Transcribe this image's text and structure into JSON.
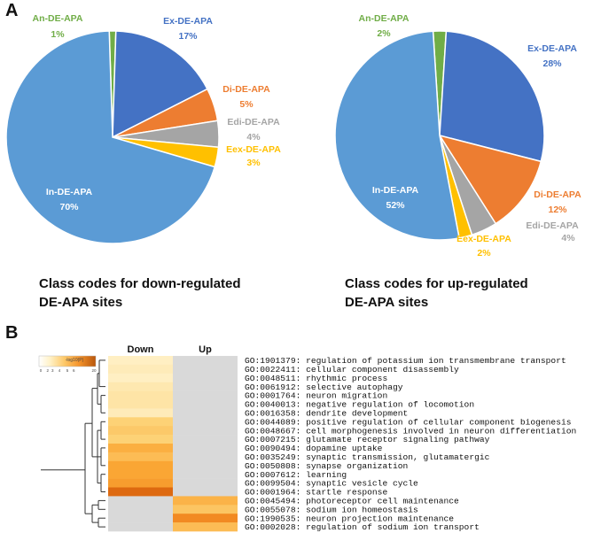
{
  "panels": {
    "a_letter": "A",
    "b_letter": "B"
  },
  "colors": {
    "Ex-DE-APA": "#4472c4",
    "Di-DE-APA": "#ed7d31",
    "Edi-DE-APA": "#a5a5a5",
    "Eex-DE-APA": "#ffc000",
    "In-DE-APA": "#5b9bd5",
    "An-DE-APA": "#70ad47",
    "heat_none": "#d9d9d9"
  },
  "captions": {
    "down_line1": "Class codes for down-regulated",
    "down_line2": "DE-APA sites",
    "up_line1": "Class codes for up-regulated",
    "up_line2": "DE-APA sites"
  },
  "chart_data": [
    {
      "type": "pie",
      "title": "Class codes for down-regulated DE-APA sites",
      "slices": [
        {
          "label": "An-DE-APA",
          "pct_label": "1%",
          "value": 1
        },
        {
          "label": "Ex-DE-APA",
          "pct_label": "17%",
          "value": 17
        },
        {
          "label": "Di-DE-APA",
          "pct_label": "5%",
          "value": 5
        },
        {
          "label": "Edi-DE-APA",
          "pct_label": "4%",
          "value": 4
        },
        {
          "label": "Eex-DE-APA",
          "pct_label": "3%",
          "value": 3
        },
        {
          "label": "In-DE-APA",
          "pct_label": "70%",
          "value": 70
        }
      ]
    },
    {
      "type": "pie",
      "title": "Class codes for up-regulated DE-APA sites",
      "slices": [
        {
          "label": "An-DE-APA",
          "pct_label": "2%",
          "value": 2
        },
        {
          "label": "Ex-DE-APA",
          "pct_label": "28%",
          "value": 28
        },
        {
          "label": "Di-DE-APA",
          "pct_label": "12%",
          "value": 12
        },
        {
          "label": "Edi-DE-APA",
          "pct_label": "4%",
          "value": 4
        },
        {
          "label": "Eex-DE-APA",
          "pct_label": "2%",
          "value": 2
        },
        {
          "label": "In-DE-APA",
          "pct_label": "52%",
          "value": 52
        }
      ]
    },
    {
      "type": "heatmap",
      "columns": [
        "Down",
        "Up"
      ],
      "legend": {
        "title": "-log10(P)",
        "ticks": [
          "0",
          "2",
          "3",
          "4",
          "5",
          "6",
          "20"
        ]
      },
      "rows": [
        {
          "term": "GO:1901379: regulation of potassium ion transmembrane transport",
          "down": 2.2,
          "up": null
        },
        {
          "term": "GO:0022411: cellular component disassembly",
          "down": 2.3,
          "up": null
        },
        {
          "term": "GO:0048511: rhythmic process",
          "down": 2.2,
          "up": null
        },
        {
          "term": "GO:0061912: selective autophagy",
          "down": 2.4,
          "up": null
        },
        {
          "term": "GO:0001764: neuron migration",
          "down": 2.5,
          "up": null
        },
        {
          "term": "GO:0040013: negative regulation of locomotion",
          "down": 2.5,
          "up": null
        },
        {
          "term": "GO:0016358: dendrite development",
          "down": 2.3,
          "up": null
        },
        {
          "term": "GO:0044089: positive regulation of cellular component biogenesis",
          "down": 3.0,
          "up": null
        },
        {
          "term": "GO:0048667: cell morphogenesis involved in neuron differentiation",
          "down": 3.2,
          "up": null
        },
        {
          "term": "GO:0007215: glutamate receptor signaling pathway",
          "down": 3.0,
          "up": null
        },
        {
          "term": "GO:0090494: dopamine uptake",
          "down": 3.8,
          "up": null
        },
        {
          "term": "GO:0035249: synaptic transmission, glutamatergic",
          "down": 3.5,
          "up": null
        },
        {
          "term": "GO:0050808: synapse organization",
          "down": 4.0,
          "up": null
        },
        {
          "term": "GO:0007612: learning",
          "down": 4.0,
          "up": null
        },
        {
          "term": "GO:0099504: synaptic vesicle cycle",
          "down": 4.2,
          "up": null
        },
        {
          "term": "GO:0001964: startle response",
          "down": 5.5,
          "up": null
        },
        {
          "term": "GO:0045494: photoreceptor cell maintenance",
          "down": null,
          "up": 3.7
        },
        {
          "term": "GO:0055078: sodium ion homeostasis",
          "down": null,
          "up": 3.3
        },
        {
          "term": "GO:1990535: neuron projection maintenance",
          "down": null,
          "up": 4.6
        },
        {
          "term": "GO:0002028: regulation of sodium ion transport",
          "down": null,
          "up": 3.5
        }
      ]
    }
  ]
}
